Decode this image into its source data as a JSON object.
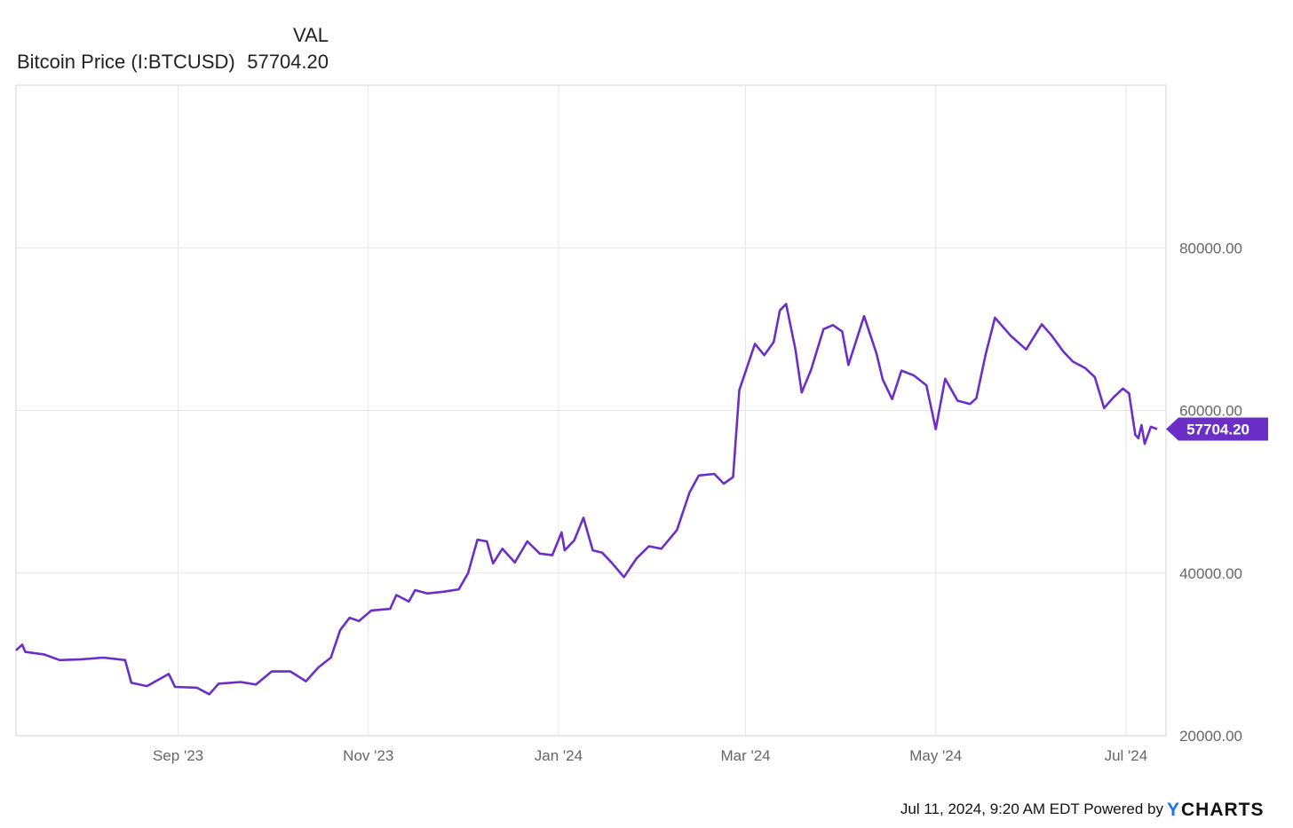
{
  "legend": {
    "column_header": "VAL",
    "series_label": "Bitcoin Price (I:BTCUSD)",
    "series_value": "57704.20"
  },
  "footer": {
    "timestamp": "Jul 11, 2024, 9:20 AM EDT",
    "powered_by": "Powered by",
    "brand_y": "Y",
    "brand_rest": "CHARTS"
  },
  "colors": {
    "line": "#6b2fc7",
    "brand_accent": "#1a73e8",
    "grid": "#e6e6e6",
    "axis_text": "#666666"
  },
  "chart_data": {
    "type": "line",
    "title": "",
    "xlabel": "",
    "ylabel": "",
    "ylim": [
      20000,
      100000
    ],
    "xlim": [
      "2023-07-11",
      "2024-07-11"
    ],
    "yticks": [
      "20000.00",
      "40000.00",
      "60000.00",
      "80000.00"
    ],
    "xticks": [
      {
        "date": "2023-09-01",
        "label": "Sep '23"
      },
      {
        "date": "2023-11-01",
        "label": "Nov '23"
      },
      {
        "date": "2024-01-01",
        "label": "Jan '24"
      },
      {
        "date": "2024-03-01",
        "label": "Mar '24"
      },
      {
        "date": "2024-05-01",
        "label": "May '24"
      },
      {
        "date": "2024-07-01",
        "label": "Jul '24"
      }
    ],
    "grid": true,
    "last_value_label": "57704.20",
    "series": [
      {
        "name": "Bitcoin Price (I:BTCUSD)",
        "points": [
          [
            "2023-07-11",
            30500
          ],
          [
            "2023-07-13",
            31200
          ],
          [
            "2023-07-14",
            30300
          ],
          [
            "2023-07-20",
            30000
          ],
          [
            "2023-07-25",
            29300
          ],
          [
            "2023-08-01",
            29400
          ],
          [
            "2023-08-08",
            29600
          ],
          [
            "2023-08-15",
            29300
          ],
          [
            "2023-08-17",
            26500
          ],
          [
            "2023-08-22",
            26100
          ],
          [
            "2023-08-29",
            27600
          ],
          [
            "2023-08-31",
            26000
          ],
          [
            "2023-09-07",
            25900
          ],
          [
            "2023-09-11",
            25100
          ],
          [
            "2023-09-14",
            26400
          ],
          [
            "2023-09-21",
            26600
          ],
          [
            "2023-09-26",
            26300
          ],
          [
            "2023-10-01",
            27900
          ],
          [
            "2023-10-07",
            27900
          ],
          [
            "2023-10-12",
            26700
          ],
          [
            "2023-10-16",
            28400
          ],
          [
            "2023-10-20",
            29600
          ],
          [
            "2023-10-23",
            33000
          ],
          [
            "2023-10-26",
            34500
          ],
          [
            "2023-10-29",
            34100
          ],
          [
            "2023-11-02",
            35400
          ],
          [
            "2023-11-08",
            35600
          ],
          [
            "2023-11-10",
            37300
          ],
          [
            "2023-11-14",
            36500
          ],
          [
            "2023-11-16",
            37900
          ],
          [
            "2023-11-20",
            37500
          ],
          [
            "2023-11-25",
            37700
          ],
          [
            "2023-11-30",
            38000
          ],
          [
            "2023-12-03",
            40000
          ],
          [
            "2023-12-06",
            44100
          ],
          [
            "2023-12-09",
            43900
          ],
          [
            "2023-12-11",
            41200
          ],
          [
            "2023-12-14",
            43000
          ],
          [
            "2023-12-18",
            41300
          ],
          [
            "2023-12-22",
            43900
          ],
          [
            "2023-12-26",
            42400
          ],
          [
            "2023-12-30",
            42200
          ],
          [
            "2024-01-02",
            45000
          ],
          [
            "2024-01-03",
            42800
          ],
          [
            "2024-01-06",
            44000
          ],
          [
            "2024-01-09",
            46800
          ],
          [
            "2024-01-12",
            42800
          ],
          [
            "2024-01-15",
            42500
          ],
          [
            "2024-01-18",
            41300
          ],
          [
            "2024-01-22",
            39500
          ],
          [
            "2024-01-26",
            41800
          ],
          [
            "2024-01-30",
            43300
          ],
          [
            "2024-02-03",
            43000
          ],
          [
            "2024-02-08",
            45300
          ],
          [
            "2024-02-12",
            49900
          ],
          [
            "2024-02-15",
            52000
          ],
          [
            "2024-02-20",
            52200
          ],
          [
            "2024-02-23",
            51000
          ],
          [
            "2024-02-26",
            51800
          ],
          [
            "2024-02-28",
            62500
          ],
          [
            "2024-03-04",
            68200
          ],
          [
            "2024-03-07",
            66800
          ],
          [
            "2024-03-10",
            68400
          ],
          [
            "2024-03-12",
            72300
          ],
          [
            "2024-03-14",
            73100
          ],
          [
            "2024-03-17",
            67500
          ],
          [
            "2024-03-19",
            62200
          ],
          [
            "2024-03-22",
            65000
          ],
          [
            "2024-03-26",
            70000
          ],
          [
            "2024-03-29",
            70500
          ],
          [
            "2024-04-01",
            69700
          ],
          [
            "2024-04-03",
            65600
          ],
          [
            "2024-04-08",
            71600
          ],
          [
            "2024-04-12",
            67000
          ],
          [
            "2024-04-14",
            63800
          ],
          [
            "2024-04-17",
            61400
          ],
          [
            "2024-04-20",
            64900
          ],
          [
            "2024-04-24",
            64300
          ],
          [
            "2024-04-28",
            63100
          ],
          [
            "2024-05-01",
            57700
          ],
          [
            "2024-05-04",
            63900
          ],
          [
            "2024-05-08",
            61200
          ],
          [
            "2024-05-12",
            60800
          ],
          [
            "2024-05-14",
            61500
          ],
          [
            "2024-05-17",
            66900
          ],
          [
            "2024-05-20",
            71400
          ],
          [
            "2024-05-25",
            69200
          ],
          [
            "2024-05-30",
            67500
          ],
          [
            "2024-06-04",
            70600
          ],
          [
            "2024-06-07",
            69300
          ],
          [
            "2024-06-11",
            67200
          ],
          [
            "2024-06-14",
            66000
          ],
          [
            "2024-06-18",
            65200
          ],
          [
            "2024-06-21",
            64100
          ],
          [
            "2024-06-24",
            60300
          ],
          [
            "2024-06-27",
            61600
          ],
          [
            "2024-06-30",
            62700
          ],
          [
            "2024-07-02",
            62100
          ],
          [
            "2024-07-04",
            57000
          ],
          [
            "2024-07-05",
            56600
          ],
          [
            "2024-07-06",
            58200
          ],
          [
            "2024-07-07",
            55900
          ],
          [
            "2024-07-09",
            58000
          ],
          [
            "2024-07-11",
            57704.2
          ]
        ]
      }
    ]
  }
}
